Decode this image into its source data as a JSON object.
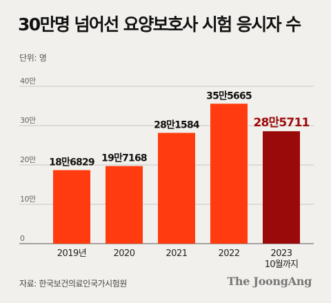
{
  "title": "30만명 넘어선 요양보호사 시험 응시자 수",
  "unit_label": "단위: 명",
  "source": "자료: 한국보건의료인국가시험원",
  "brand": "The JoongAng",
  "colors": {
    "bar": "#ff3b0f",
    "highlight_bar": "#9b0a0a",
    "highlight_label": "#9b0a0a",
    "grid": "#c9c6c0",
    "tick_text": "#666666",
    "label_text": "#111111"
  },
  "chart_data": {
    "type": "bar",
    "title": "30만명 넘어선 요양보호사 시험 응시자 수",
    "ylabel": "단위: 명",
    "ylim": [
      0,
      400000
    ],
    "yticks": [
      0,
      100000,
      200000,
      300000,
      400000
    ],
    "ytick_labels": [
      "0",
      "10만",
      "20만",
      "30만",
      "40만"
    ],
    "grid": true,
    "categories": [
      "2019년",
      "2020",
      "2021",
      "2022",
      "2023"
    ],
    "category_sublabels": [
      "",
      "",
      "",
      "",
      "10월까지"
    ],
    "values": [
      186829,
      197168,
      281584,
      355665,
      285711
    ],
    "value_labels": [
      "18만6829",
      "19만7168",
      "28만1584",
      "35만5665",
      "28만5711"
    ],
    "highlight_index": 4
  }
}
